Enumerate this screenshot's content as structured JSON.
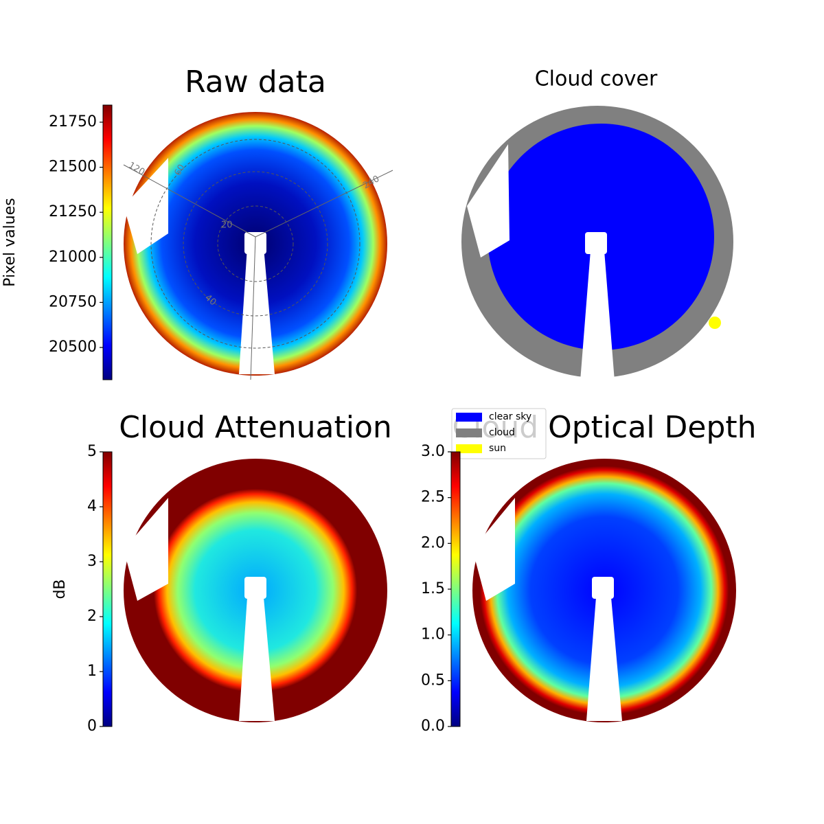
{
  "chart_data": [
    {
      "type": "image",
      "title": "Raw data",
      "colormap": "jet",
      "annotations": [
        "120",
        "60",
        "240",
        "20",
        "40"
      ],
      "colorbar": {
        "label": "Pixel values",
        "lim": [
          20321,
          21845
        ],
        "ticks": [
          20500,
          20750,
          21000,
          21250,
          21500,
          21750
        ]
      }
    },
    {
      "type": "image",
      "title": "Cloud cover",
      "legend": [
        {
          "name": "clear sky",
          "color": "#0000ff"
        },
        {
          "name": "cloud",
          "color": "#808080"
        },
        {
          "name": "sun",
          "color": "#ffff00"
        }
      ]
    },
    {
      "type": "image",
      "title": "Cloud Attenuation",
      "colormap": "jet",
      "colorbar": {
        "label": "dB",
        "lim": [
          0,
          5
        ],
        "ticks": [
          0,
          1,
          2,
          3,
          4,
          5
        ]
      }
    },
    {
      "type": "image",
      "title": "Cloud Optical Depth",
      "colormap": "jet",
      "colorbar": {
        "lim": [
          0,
          3
        ],
        "ticks": [
          {
            "value": 0,
            "label": "0.0"
          },
          0.5,
          {
            "value": 1,
            "label": "1.0"
          },
          1.5,
          {
            "value": 2,
            "label": "2.0"
          },
          2.5,
          {
            "value": 3,
            "label": "3.0"
          }
        ]
      }
    }
  ]
}
